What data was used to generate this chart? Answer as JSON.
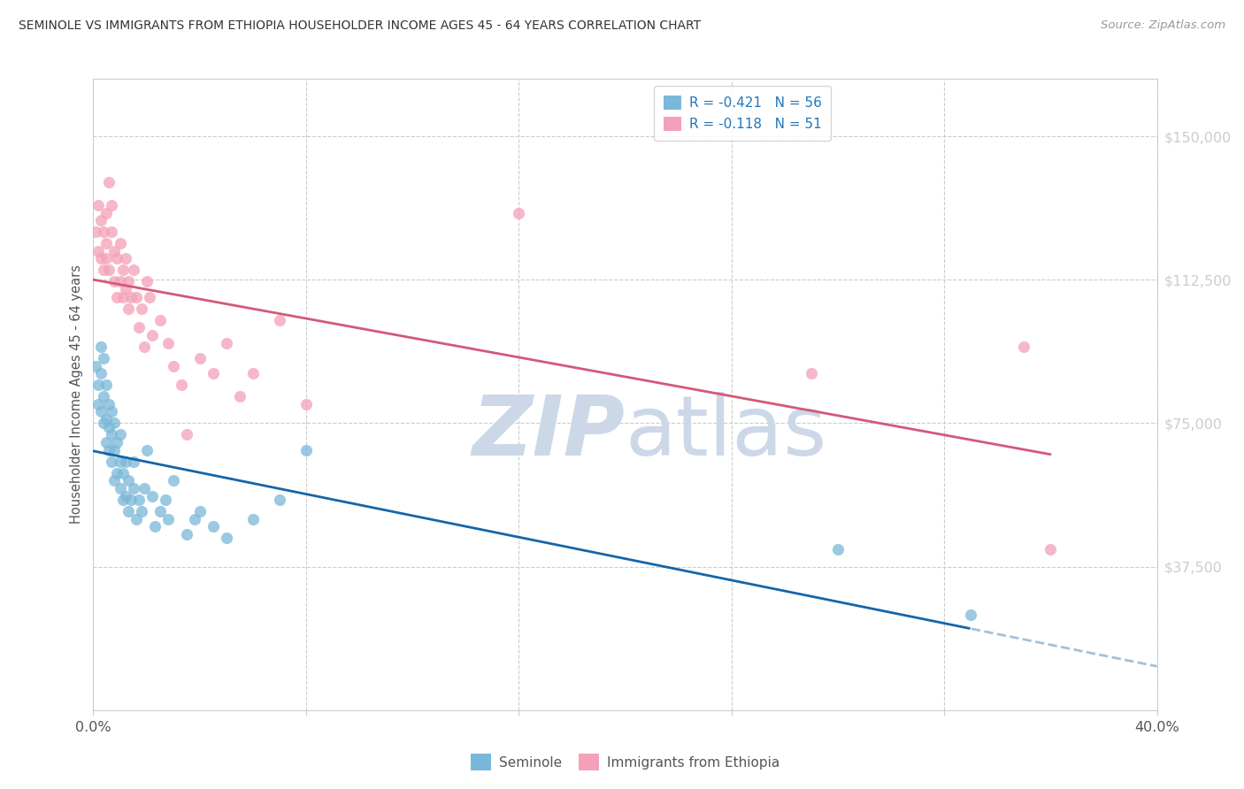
{
  "title": "SEMINOLE VS IMMIGRANTS FROM ETHIOPIA HOUSEHOLDER INCOME AGES 45 - 64 YEARS CORRELATION CHART",
  "source": "Source: ZipAtlas.com",
  "ylabel": "Householder Income Ages 45 - 64 years",
  "y_ticks": [
    37500,
    75000,
    112500,
    150000
  ],
  "y_tick_labels": [
    "$37,500",
    "$75,000",
    "$112,500",
    "$150,000"
  ],
  "y_min": 0,
  "y_max": 165000,
  "x_min": 0.0,
  "x_max": 0.4,
  "seminole_color": "#7ab8d9",
  "ethiopia_color": "#f4a0b8",
  "regression_blue": "#1565a8",
  "regression_pink": "#d45878",
  "watermark_zip_color": "#ccd8e8",
  "watermark_atlas_color": "#ccd8e8",
  "grid_color": "#cccccc",
  "title_color": "#333333",
  "source_color": "#999999",
  "seminole_R": -0.421,
  "seminole_N": 56,
  "ethiopia_R": -0.118,
  "ethiopia_N": 51,
  "legend_label_seminole": "Seminole",
  "legend_label_ethiopia": "Immigrants from Ethiopia",
  "seminole_x": [
    0.001,
    0.002,
    0.002,
    0.003,
    0.003,
    0.003,
    0.004,
    0.004,
    0.004,
    0.005,
    0.005,
    0.005,
    0.006,
    0.006,
    0.006,
    0.007,
    0.007,
    0.007,
    0.008,
    0.008,
    0.008,
    0.009,
    0.009,
    0.01,
    0.01,
    0.01,
    0.011,
    0.011,
    0.012,
    0.012,
    0.013,
    0.013,
    0.014,
    0.015,
    0.015,
    0.016,
    0.017,
    0.018,
    0.019,
    0.02,
    0.022,
    0.023,
    0.025,
    0.027,
    0.028,
    0.03,
    0.035,
    0.038,
    0.04,
    0.045,
    0.05,
    0.06,
    0.07,
    0.08,
    0.28,
    0.33
  ],
  "seminole_y": [
    90000,
    85000,
    80000,
    78000,
    95000,
    88000,
    75000,
    82000,
    92000,
    70000,
    76000,
    85000,
    68000,
    74000,
    80000,
    65000,
    72000,
    78000,
    60000,
    68000,
    75000,
    62000,
    70000,
    58000,
    65000,
    72000,
    55000,
    62000,
    56000,
    65000,
    52000,
    60000,
    55000,
    58000,
    65000,
    50000,
    55000,
    52000,
    58000,
    68000,
    56000,
    48000,
    52000,
    55000,
    50000,
    60000,
    46000,
    50000,
    52000,
    48000,
    45000,
    50000,
    55000,
    68000,
    42000,
    25000
  ],
  "ethiopia_x": [
    0.001,
    0.002,
    0.002,
    0.003,
    0.003,
    0.004,
    0.004,
    0.005,
    0.005,
    0.005,
    0.006,
    0.006,
    0.007,
    0.007,
    0.008,
    0.008,
    0.009,
    0.009,
    0.01,
    0.01,
    0.011,
    0.011,
    0.012,
    0.012,
    0.013,
    0.013,
    0.014,
    0.015,
    0.016,
    0.017,
    0.018,
    0.019,
    0.02,
    0.021,
    0.022,
    0.025,
    0.028,
    0.03,
    0.033,
    0.035,
    0.04,
    0.045,
    0.05,
    0.055,
    0.06,
    0.07,
    0.08,
    0.16,
    0.27,
    0.35,
    0.36
  ],
  "ethiopia_y": [
    125000,
    120000,
    132000,
    118000,
    128000,
    115000,
    125000,
    130000,
    118000,
    122000,
    138000,
    115000,
    125000,
    132000,
    120000,
    112000,
    118000,
    108000,
    122000,
    112000,
    115000,
    108000,
    118000,
    110000,
    112000,
    105000,
    108000,
    115000,
    108000,
    100000,
    105000,
    95000,
    112000,
    108000,
    98000,
    102000,
    96000,
    90000,
    85000,
    72000,
    92000,
    88000,
    96000,
    82000,
    88000,
    102000,
    80000,
    130000,
    88000,
    95000,
    42000
  ]
}
